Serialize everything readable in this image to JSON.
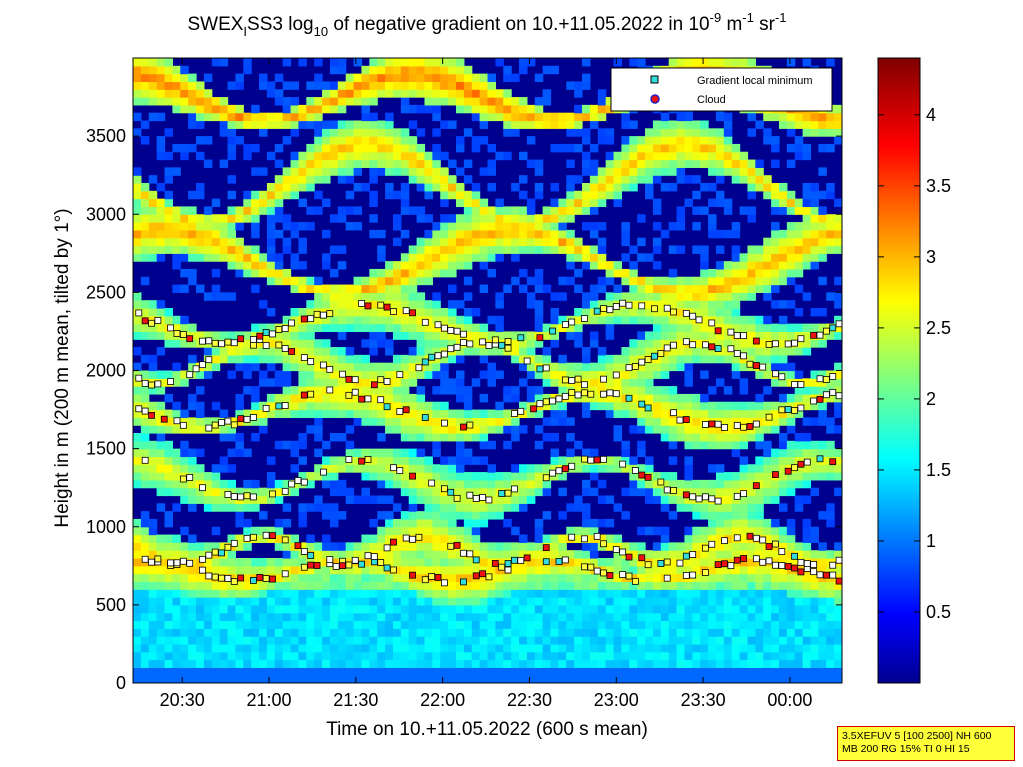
{
  "chart_data": {
    "type": "heatmap",
    "title": {
      "prefix": "SWEX",
      "prefix_sub": "I",
      "middle": "SS3 log",
      "log_sub": "10",
      "main": " of negative gradient on 10.+11.05.2022 in 10",
      "exp1": "-9",
      "unit_m": " m",
      "exp2": "-1",
      "unit_sr": " sr",
      "exp3": "-1"
    },
    "xlabel": "Time on 10.+11.05.2022 (600 s mean)",
    "ylabel": "Height in m (200 m mean, tilted by 1°)",
    "x_ticks": [
      "20:30",
      "21:00",
      "21:30",
      "22:00",
      "22:30",
      "23:00",
      "23:30",
      "00:00"
    ],
    "x_tick_minutes": [
      30,
      60,
      90,
      120,
      150,
      180,
      210,
      240
    ],
    "xlim_minutes": [
      13,
      258
    ],
    "y_ticks": [
      "0",
      "500",
      "1000",
      "1500",
      "2000",
      "2500",
      "3000",
      "3500"
    ],
    "y_tick_values": [
      0,
      500,
      1000,
      1500,
      2000,
      2500,
      3000,
      3500
    ],
    "ylim": [
      0,
      4000
    ],
    "colorbar": {
      "ticks": [
        "0.5",
        "1",
        "1.5",
        "2",
        "2.5",
        "3",
        "3.5",
        "4"
      ],
      "tick_values": [
        0.5,
        1,
        1.5,
        2,
        2.5,
        3,
        3.5,
        4
      ],
      "range": [
        0,
        4.4
      ],
      "colormap": "jet"
    },
    "legend": {
      "placement": "top-right",
      "entries": [
        {
          "label": "Gradient local minimum",
          "marker": "square",
          "color": "#33dddd"
        },
        {
          "label": "Cloud",
          "marker": "circle",
          "color": "#ee1111"
        }
      ]
    },
    "layers": [
      {
        "base_height": 720,
        "amplitude": 60,
        "period_min": 70,
        "phase": 0.0,
        "value": 3.0
      },
      {
        "base_height": 850,
        "amplitude": 90,
        "period_min": 55,
        "phase": 1.2,
        "value": 2.9
      },
      {
        "base_height": 1300,
        "amplitude": 120,
        "period_min": 80,
        "phase": 0.6,
        "value": 2.7
      },
      {
        "base_height": 1750,
        "amplitude": 110,
        "period_min": 90,
        "phase": 2.1,
        "value": 2.9
      },
      {
        "base_height": 2050,
        "amplitude": 130,
        "period_min": 75,
        "phase": 3.0,
        "value": 2.8
      },
      {
        "base_height": 2300,
        "amplitude": 120,
        "period_min": 95,
        "phase": 1.7,
        "value": 2.8
      },
      {
        "base_height": 2700,
        "amplitude": 200,
        "period_min": 120,
        "phase": 0.3,
        "value": 3.1
      },
      {
        "base_height": 3200,
        "amplitude": 250,
        "period_min": 110,
        "phase": 2.5,
        "value": 3.0
      },
      {
        "base_height": 3750,
        "amplitude": 150,
        "period_min": 100,
        "phase": 1.0,
        "value": 3.3
      }
    ]
  },
  "info_box": {
    "line1": "3.5XEFUV 5 [100 2500] NH 600",
    "line2": "MB 200 RG 15% TI 0 HI 15"
  }
}
